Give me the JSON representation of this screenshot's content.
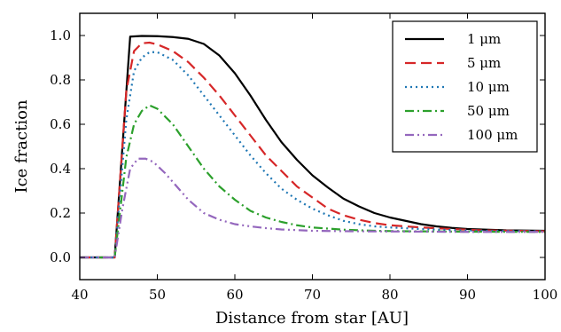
{
  "chart_data": {
    "type": "line",
    "xlabel": "Distance from star [AU]",
    "ylabel": "Ice fraction",
    "xlim": [
      40,
      100
    ],
    "ylim": [
      -0.1,
      1.1
    ],
    "xticks": [
      40,
      50,
      60,
      70,
      80,
      90,
      100
    ],
    "yticks": [
      0.0,
      0.2,
      0.4,
      0.6,
      0.8,
      1.0
    ],
    "xtick_labels": [
      "40",
      "50",
      "60",
      "70",
      "80",
      "90",
      "100"
    ],
    "ytick_labels": [
      "0.0",
      "0.2",
      "0.4",
      "0.6",
      "0.8",
      "1.0"
    ],
    "grid": false,
    "legend_position": "top-right",
    "series": [
      {
        "name": "1 μm",
        "color": "#000000",
        "dash": "solid",
        "x": [
          40,
          44.5,
          46.5,
          48,
          50,
          52,
          54,
          56,
          58,
          60,
          62,
          64,
          66,
          68,
          70,
          72,
          74,
          76,
          78,
          80,
          82,
          84,
          86,
          88,
          90,
          95,
          100
        ],
        "y": [
          0,
          0,
          0.995,
          0.998,
          0.997,
          0.993,
          0.985,
          0.962,
          0.91,
          0.83,
          0.73,
          0.62,
          0.52,
          0.44,
          0.37,
          0.315,
          0.265,
          0.23,
          0.2,
          0.18,
          0.165,
          0.15,
          0.14,
          0.133,
          0.128,
          0.122,
          0.12
        ]
      },
      {
        "name": "5 μm",
        "color": "#d62728",
        "dash": "dashed",
        "x": [
          40,
          44.5,
          46,
          47,
          48,
          49,
          50,
          52,
          54,
          56,
          58,
          60,
          62,
          64,
          66,
          68,
          70,
          72,
          74,
          76,
          78,
          80,
          84,
          88,
          92,
          100
        ],
        "y": [
          0,
          0,
          0.75,
          0.93,
          0.965,
          0.968,
          0.96,
          0.93,
          0.88,
          0.81,
          0.73,
          0.64,
          0.55,
          0.46,
          0.39,
          0.32,
          0.27,
          0.22,
          0.19,
          0.17,
          0.155,
          0.145,
          0.135,
          0.128,
          0.122,
          0.118
        ]
      },
      {
        "name": "10 μm",
        "color": "#1f77b4",
        "dash": "dotted",
        "x": [
          40,
          44.5,
          46,
          47,
          48,
          49,
          50,
          52,
          54,
          56,
          58,
          60,
          62,
          64,
          66,
          68,
          70,
          72,
          74,
          76,
          78,
          80,
          84,
          88,
          92,
          100
        ],
        "y": [
          0,
          0,
          0.62,
          0.84,
          0.9,
          0.925,
          0.925,
          0.89,
          0.82,
          0.73,
          0.64,
          0.55,
          0.46,
          0.38,
          0.31,
          0.26,
          0.22,
          0.19,
          0.165,
          0.15,
          0.14,
          0.135,
          0.128,
          0.123,
          0.12,
          0.118
        ]
      },
      {
        "name": "50 μm",
        "color": "#2ca02c",
        "dash": "dashdot",
        "x": [
          40,
          44.5,
          46,
          47,
          48,
          49,
          50,
          52,
          54,
          56,
          58,
          60,
          62,
          64,
          66,
          68,
          70,
          74,
          78,
          82,
          86,
          90,
          100
        ],
        "y": [
          0,
          0,
          0.45,
          0.6,
          0.66,
          0.685,
          0.67,
          0.6,
          0.5,
          0.4,
          0.32,
          0.26,
          0.21,
          0.18,
          0.16,
          0.145,
          0.135,
          0.125,
          0.12,
          0.118,
          0.117,
          0.116,
          0.115
        ]
      },
      {
        "name": "100 μm",
        "color": "#9467bd",
        "dash": "dashdotdot",
        "x": [
          40,
          44.5,
          45.5,
          46.5,
          47.5,
          48.5,
          49.5,
          51,
          52.5,
          54,
          56,
          58,
          60,
          62,
          64,
          66,
          70,
          75,
          80,
          85,
          90,
          100
        ],
        "y": [
          0,
          0,
          0.22,
          0.4,
          0.445,
          0.445,
          0.43,
          0.38,
          0.32,
          0.26,
          0.2,
          0.17,
          0.15,
          0.14,
          0.132,
          0.126,
          0.12,
          0.118,
          0.117,
          0.116,
          0.115,
          0.115
        ]
      }
    ]
  }
}
